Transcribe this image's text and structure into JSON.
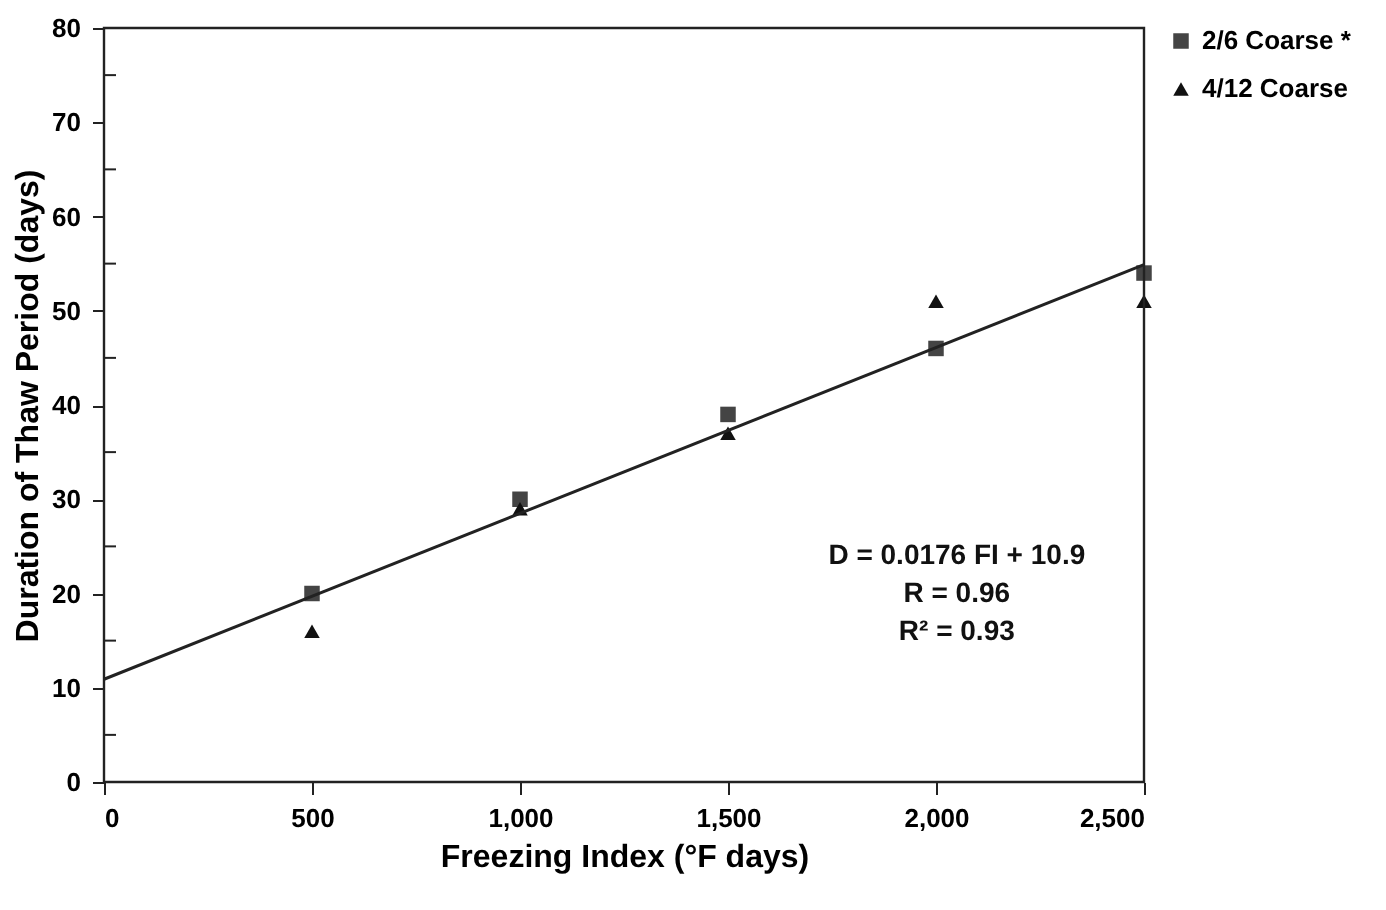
{
  "chart_data": {
    "type": "scatter",
    "xlabel": "Freezing Index (°F days)",
    "ylabel": "Duration of Thaw Period (days)",
    "x": [
      500,
      1000,
      1500,
      2000,
      2500
    ],
    "series": [
      {
        "name": "2/6 Coarse *",
        "color": "#444444",
        "marker": "square",
        "values": [
          20,
          30,
          39,
          46,
          54
        ]
      },
      {
        "name": "4/12 Coarse",
        "color": "#111111",
        "marker": "triangle",
        "values": [
          16,
          29,
          37,
          51,
          51
        ]
      },
      {
        "type": "line",
        "color": "#222222",
        "x": [
          0,
          2500
        ],
        "values": [
          10.9,
          54.9
        ]
      }
    ],
    "xlim": [
      0,
      2500
    ],
    "ylim": [
      0,
      80
    ],
    "xticks": [
      0,
      {
        "value": 500,
        "label": "500"
      },
      {
        "value": 1000,
        "label": "1,000"
      },
      {
        "value": 1500,
        "label": "1,500"
      },
      {
        "value": 2000,
        "label": "2,000"
      },
      {
        "value": 2500,
        "label": "2,500"
      }
    ],
    "yticks": [
      0,
      {
        "value": 5,
        "label": null
      },
      10,
      {
        "value": 15,
        "label": null
      },
      20,
      {
        "value": 25,
        "label": null
      },
      30,
      {
        "value": 35,
        "label": null
      },
      40,
      {
        "value": 45,
        "label": null
      },
      50,
      {
        "value": 55,
        "label": null
      },
      60,
      {
        "value": 65,
        "label": null
      },
      70,
      {
        "value": 75,
        "label": null
      },
      80
    ],
    "annotations": [
      "D = 0.0176 FI + 10.9",
      "R    = 0.96",
      "R² = 0.93"
    ],
    "grid": false,
    "legend": "top right"
  }
}
